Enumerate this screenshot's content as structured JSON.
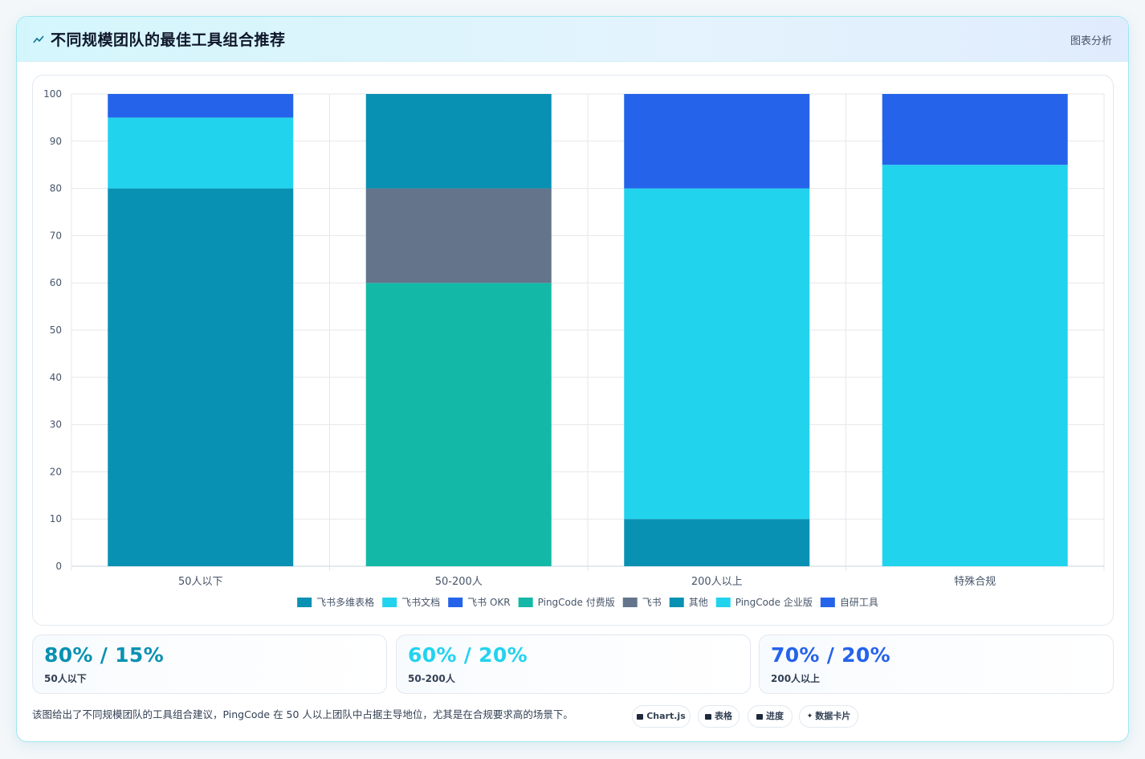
{
  "header": {
    "title": "不同规模团队的最佳工具组合推荐",
    "link_label": "图表分析",
    "icon": "sparkline-icon"
  },
  "chart_data": {
    "type": "bar",
    "stacked": true,
    "categories": [
      "50人以下",
      "50-200人",
      "200人以上",
      "特殊合规"
    ],
    "ylim": [
      0,
      100
    ],
    "yticks": [
      0,
      10,
      20,
      30,
      40,
      50,
      60,
      70,
      80,
      90,
      100
    ],
    "grid": true,
    "legend_position": "bottom",
    "series": [
      {
        "name": "飞书多维表格",
        "color": "#0891b2",
        "values": [
          80,
          0,
          0,
          0
        ]
      },
      {
        "name": "飞书文档",
        "color": "#22d3ee",
        "values": [
          15,
          0,
          0,
          0
        ]
      },
      {
        "name": "飞书 OKR",
        "color": "#2563eb",
        "values": [
          5,
          0,
          0,
          0
        ]
      },
      {
        "name": "PingCode 付费版",
        "color": "#14b8a6",
        "values": [
          0,
          60,
          0,
          0
        ]
      },
      {
        "name": "飞书",
        "color": "#64748b",
        "values": [
          0,
          20,
          0,
          0
        ]
      },
      {
        "name": "其他",
        "color": "#0891b2",
        "values": [
          0,
          20,
          10,
          0
        ]
      },
      {
        "name": "PingCode 企业版",
        "color": "#22d3ee",
        "values": [
          0,
          0,
          70,
          85
        ]
      },
      {
        "name": "自研工具",
        "color": "#2563eb",
        "values": [
          0,
          0,
          20,
          15
        ]
      }
    ]
  },
  "stats": [
    {
      "value": "80% / 15%",
      "label": "50人以下",
      "color": "#0891b2"
    },
    {
      "value": "60% / 20%",
      "label": "50-200人",
      "color": "#22d3ee"
    },
    {
      "value": "70% / 20%",
      "label": "200人以上",
      "color": "#2563eb"
    }
  ],
  "footer": {
    "note": "该图给出了不同规模团队的工具组合建议，PingCode 在 50 人以上团队中占据主导地位，尤其是在合规要求高的场景下。"
  },
  "chips": [
    {
      "label": "Chart.js",
      "icon": "chart-icon"
    },
    {
      "label": "表格",
      "icon": "table-icon"
    },
    {
      "label": "进度",
      "icon": "progress-icon"
    },
    {
      "label": "数据卡片",
      "icon": "sparkle-icon"
    }
  ]
}
